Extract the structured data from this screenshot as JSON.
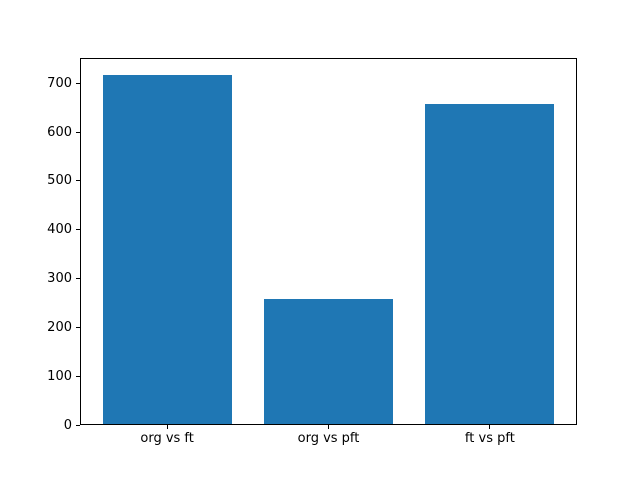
{
  "chart_data": {
    "type": "bar",
    "categories": [
      "org vs ft",
      "org vs pft",
      "ft vs pft"
    ],
    "values": [
      716,
      256,
      655
    ],
    "title": "",
    "xlabel": "",
    "ylabel": "",
    "ylim": [
      0,
      752
    ],
    "xlim": [
      -0.54,
      2.54
    ],
    "bar_width": 0.8,
    "yticks": [
      0,
      100,
      200,
      300,
      400,
      500,
      600,
      700
    ],
    "grid": false,
    "legend": false,
    "colors": {
      "bar": "#1f77b4",
      "axis": "#000000",
      "text": "#000000",
      "background": "#ffffff"
    }
  }
}
